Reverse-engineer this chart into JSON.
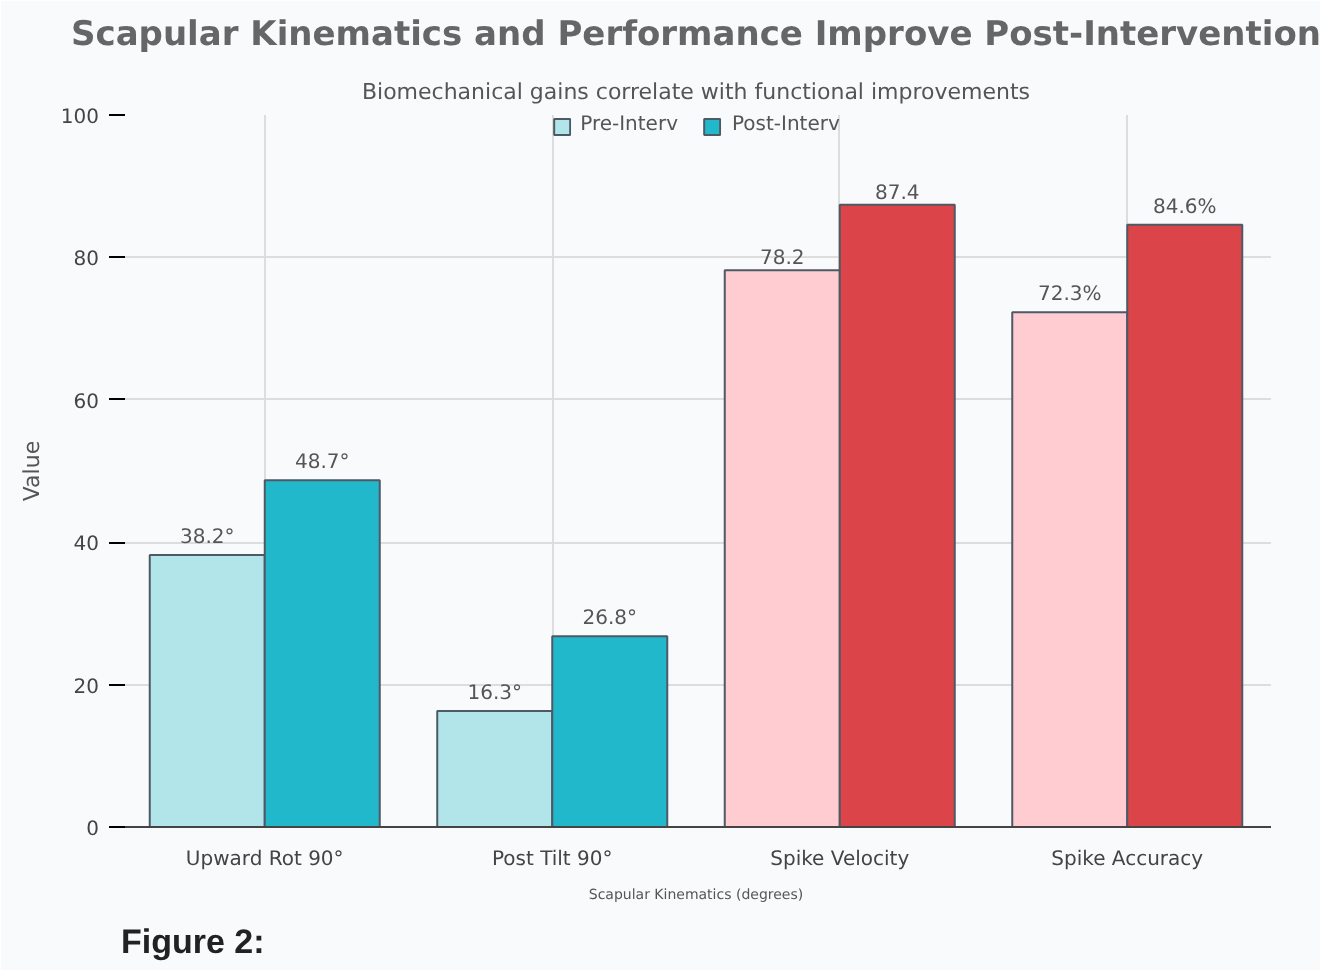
{
  "chart_data": {
    "type": "bar",
    "title": "Scapular Kinematics and Performance Improve Post-Intervention",
    "subtitle": "Biomechanical gains correlate with functional improvements",
    "xlabel": "Scapular Kinematics (degrees)",
    "ylabel": "Value",
    "categories": [
      "Upward Rot 90°",
      "Post Tilt 90°",
      "Spike Velocity",
      "Spike Accuracy"
    ],
    "series": [
      {
        "name": "Pre-Interv",
        "color": "#b2e5ea",
        "colors": [
          "#b2e5ea",
          "#b2e5ea",
          "#ffccd2",
          "#ffccd2"
        ],
        "values": [
          38.2,
          16.3,
          78.2,
          72.3
        ],
        "value_labels": [
          "38.2°",
          "16.3°",
          "78.2",
          "72.3%"
        ]
      },
      {
        "name": "Post-Interv",
        "color": "#22b8cc",
        "colors": [
          "#22b8cc",
          "#22b8cc",
          "#db4549",
          "#db4549"
        ],
        "values": [
          48.7,
          26.8,
          87.4,
          84.6
        ],
        "value_labels": [
          "48.7°",
          "26.8°",
          "87.4",
          "84.6%"
        ]
      }
    ],
    "ylim": [
      0,
      100
    ],
    "yticks": [
      0,
      20,
      40,
      60,
      80,
      100
    ],
    "grid": true,
    "legend": "top",
    "annotations": [
      "Figure 2:"
    ]
  }
}
